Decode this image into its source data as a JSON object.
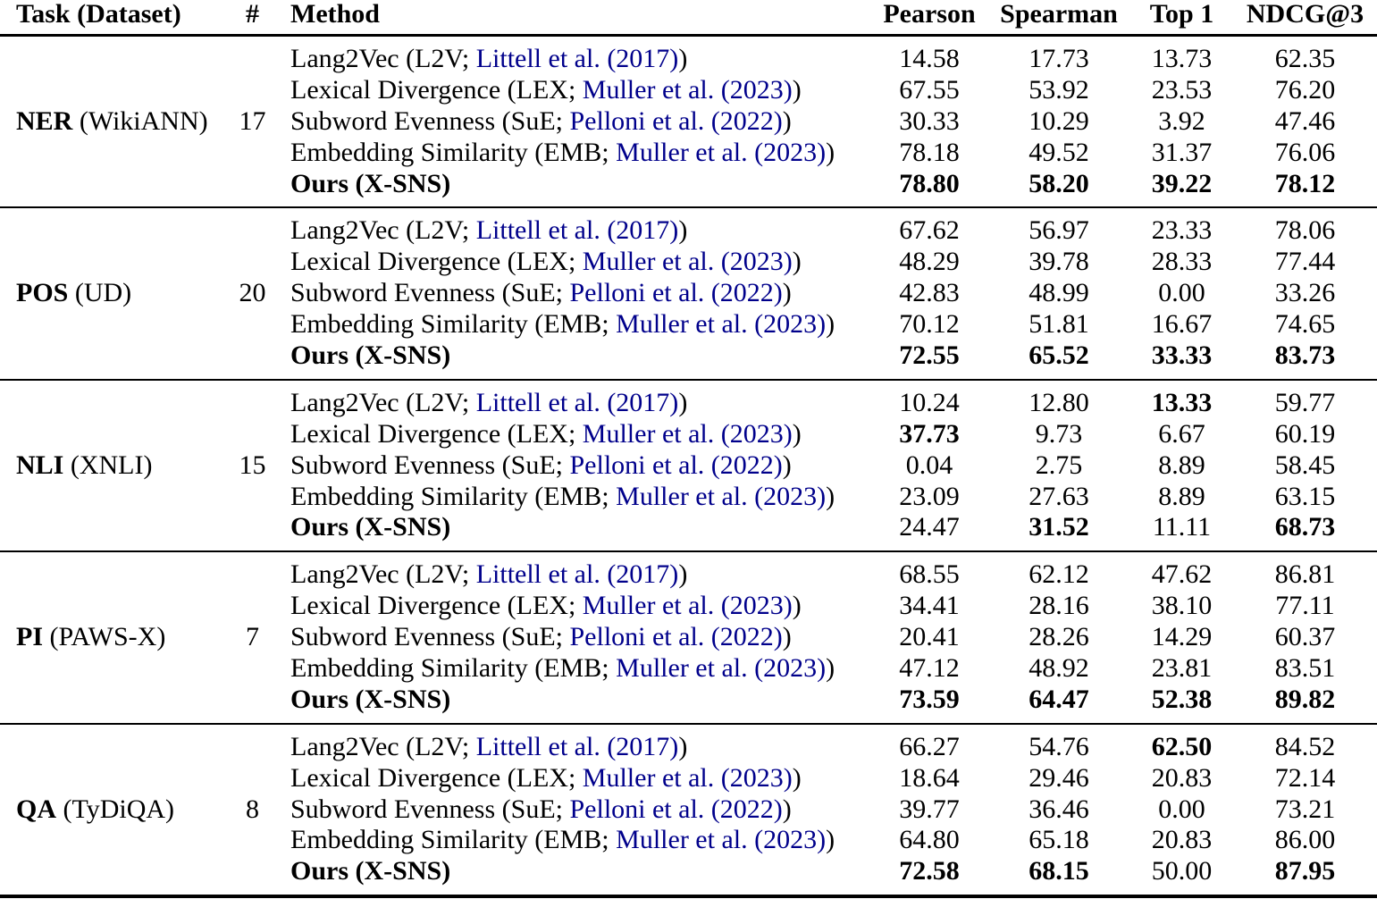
{
  "header": {
    "task": "Task (Dataset)",
    "count": "#",
    "method": "Method",
    "metrics": [
      "Pearson",
      "Spearman",
      "Top 1",
      "NDCG@3"
    ]
  },
  "colors": {
    "citation": "#00008B",
    "text": "#000000",
    "rule": "#000000",
    "background": "#ffffff"
  },
  "groups": [
    {
      "task": "NER",
      "dataset": " (WikiANN)",
      "count": "17",
      "rows": [
        {
          "pre": "Lang2Vec (L2V; ",
          "citation": "Littell et al. (2017)",
          "post": ")",
          "bold_method": false,
          "values": [
            "14.58",
            "17.73",
            "13.73",
            "62.35"
          ],
          "bold": [
            false,
            false,
            false,
            false
          ]
        },
        {
          "pre": "Lexical Divergence (LEX; ",
          "citation": "Muller et al. (2023)",
          "post": ")",
          "bold_method": false,
          "values": [
            "67.55",
            "53.92",
            "23.53",
            "76.20"
          ],
          "bold": [
            false,
            false,
            false,
            false
          ]
        },
        {
          "pre": "Subword Evenness (SuE; ",
          "citation": "Pelloni et al. (2022)",
          "post": ")",
          "bold_method": false,
          "values": [
            "30.33",
            "10.29",
            "3.92",
            "47.46"
          ],
          "bold": [
            false,
            false,
            false,
            false
          ]
        },
        {
          "pre": "Embedding Similarity (EMB; ",
          "citation": "Muller et al. (2023)",
          "post": ")",
          "bold_method": false,
          "values": [
            "78.18",
            "49.52",
            "31.37",
            "76.06"
          ],
          "bold": [
            false,
            false,
            false,
            false
          ]
        },
        {
          "pre": "Ours (X-SNS)",
          "citation": "",
          "post": "",
          "bold_method": true,
          "values": [
            "78.80",
            "58.20",
            "39.22",
            "78.12"
          ],
          "bold": [
            true,
            true,
            true,
            true
          ]
        }
      ]
    },
    {
      "task": "POS",
      "dataset": " (UD)",
      "count": "20",
      "rows": [
        {
          "pre": "Lang2Vec (L2V; ",
          "citation": "Littell et al. (2017)",
          "post": ")",
          "bold_method": false,
          "values": [
            "67.62",
            "56.97",
            "23.33",
            "78.06"
          ],
          "bold": [
            false,
            false,
            false,
            false
          ]
        },
        {
          "pre": "Lexical Divergence (LEX; ",
          "citation": "Muller et al. (2023)",
          "post": ")",
          "bold_method": false,
          "values": [
            "48.29",
            "39.78",
            "28.33",
            "77.44"
          ],
          "bold": [
            false,
            false,
            false,
            false
          ]
        },
        {
          "pre": "Subword Evenness (SuE; ",
          "citation": "Pelloni et al. (2022)",
          "post": ")",
          "bold_method": false,
          "values": [
            "42.83",
            "48.99",
            "0.00",
            "33.26"
          ],
          "bold": [
            false,
            false,
            false,
            false
          ]
        },
        {
          "pre": "Embedding Similarity (EMB; ",
          "citation": "Muller et al. (2023)",
          "post": ")",
          "bold_method": false,
          "values": [
            "70.12",
            "51.81",
            "16.67",
            "74.65"
          ],
          "bold": [
            false,
            false,
            false,
            false
          ]
        },
        {
          "pre": "Ours (X-SNS)",
          "citation": "",
          "post": "",
          "bold_method": true,
          "values": [
            "72.55",
            "65.52",
            "33.33",
            "83.73"
          ],
          "bold": [
            true,
            true,
            true,
            true
          ]
        }
      ]
    },
    {
      "task": "NLI",
      "dataset": " (XNLI)",
      "count": "15",
      "rows": [
        {
          "pre": "Lang2Vec (L2V; ",
          "citation": "Littell et al. (2017)",
          "post": ")",
          "bold_method": false,
          "values": [
            "10.24",
            "12.80",
            "13.33",
            "59.77"
          ],
          "bold": [
            false,
            false,
            true,
            false
          ]
        },
        {
          "pre": "Lexical Divergence (LEX; ",
          "citation": "Muller et al. (2023)",
          "post": ")",
          "bold_method": false,
          "values": [
            "37.73",
            "9.73",
            "6.67",
            "60.19"
          ],
          "bold": [
            true,
            false,
            false,
            false
          ]
        },
        {
          "pre": "Subword Evenness (SuE; ",
          "citation": "Pelloni et al. (2022)",
          "post": ")",
          "bold_method": false,
          "values": [
            "0.04",
            "2.75",
            "8.89",
            "58.45"
          ],
          "bold": [
            false,
            false,
            false,
            false
          ]
        },
        {
          "pre": "Embedding Similarity (EMB; ",
          "citation": "Muller et al. (2023)",
          "post": ")",
          "bold_method": false,
          "values": [
            "23.09",
            "27.63",
            "8.89",
            "63.15"
          ],
          "bold": [
            false,
            false,
            false,
            false
          ]
        },
        {
          "pre": "Ours (X-SNS)",
          "citation": "",
          "post": "",
          "bold_method": true,
          "values": [
            "24.47",
            "31.52",
            "11.11",
            "68.73"
          ],
          "bold": [
            false,
            true,
            false,
            true
          ]
        }
      ]
    },
    {
      "task": "PI",
      "dataset": " (PAWS-X)",
      "count": "7",
      "rows": [
        {
          "pre": "Lang2Vec (L2V; ",
          "citation": "Littell et al. (2017)",
          "post": ")",
          "bold_method": false,
          "values": [
            "68.55",
            "62.12",
            "47.62",
            "86.81"
          ],
          "bold": [
            false,
            false,
            false,
            false
          ]
        },
        {
          "pre": "Lexical Divergence (LEX; ",
          "citation": "Muller et al. (2023)",
          "post": ")",
          "bold_method": false,
          "values": [
            "34.41",
            "28.16",
            "38.10",
            "77.11"
          ],
          "bold": [
            false,
            false,
            false,
            false
          ]
        },
        {
          "pre": "Subword Evenness (SuE; ",
          "citation": "Pelloni et al. (2022)",
          "post": ")",
          "bold_method": false,
          "values": [
            "20.41",
            "28.26",
            "14.29",
            "60.37"
          ],
          "bold": [
            false,
            false,
            false,
            false
          ]
        },
        {
          "pre": "Embedding Similarity (EMB; ",
          "citation": "Muller et al. (2023)",
          "post": ")",
          "bold_method": false,
          "values": [
            "47.12",
            "48.92",
            "23.81",
            "83.51"
          ],
          "bold": [
            false,
            false,
            false,
            false
          ]
        },
        {
          "pre": "Ours (X-SNS)",
          "citation": "",
          "post": "",
          "bold_method": true,
          "values": [
            "73.59",
            "64.47",
            "52.38",
            "89.82"
          ],
          "bold": [
            true,
            true,
            true,
            true
          ]
        }
      ]
    },
    {
      "task": "QA",
      "dataset": " (TyDiQA)",
      "count": "8",
      "rows": [
        {
          "pre": "Lang2Vec (L2V; ",
          "citation": "Littell et al. (2017)",
          "post": ")",
          "bold_method": false,
          "values": [
            "66.27",
            "54.76",
            "62.50",
            "84.52"
          ],
          "bold": [
            false,
            false,
            true,
            false
          ]
        },
        {
          "pre": "Lexical Divergence (LEX; ",
          "citation": "Muller et al. (2023)",
          "post": ")",
          "bold_method": false,
          "values": [
            "18.64",
            "29.46",
            "20.83",
            "72.14"
          ],
          "bold": [
            false,
            false,
            false,
            false
          ]
        },
        {
          "pre": "Subword Evenness (SuE; ",
          "citation": "Pelloni et al. (2022)",
          "post": ")",
          "bold_method": false,
          "values": [
            "39.77",
            "36.46",
            "0.00",
            "73.21"
          ],
          "bold": [
            false,
            false,
            false,
            false
          ]
        },
        {
          "pre": "Embedding Similarity (EMB; ",
          "citation": "Muller et al. (2023)",
          "post": ")",
          "bold_method": false,
          "values": [
            "64.80",
            "65.18",
            "20.83",
            "86.00"
          ],
          "bold": [
            false,
            false,
            false,
            false
          ]
        },
        {
          "pre": "Ours (X-SNS)",
          "citation": "",
          "post": "",
          "bold_method": true,
          "values": [
            "72.58",
            "68.15",
            "50.00",
            "87.95"
          ],
          "bold": [
            true,
            true,
            false,
            true
          ]
        }
      ]
    }
  ]
}
